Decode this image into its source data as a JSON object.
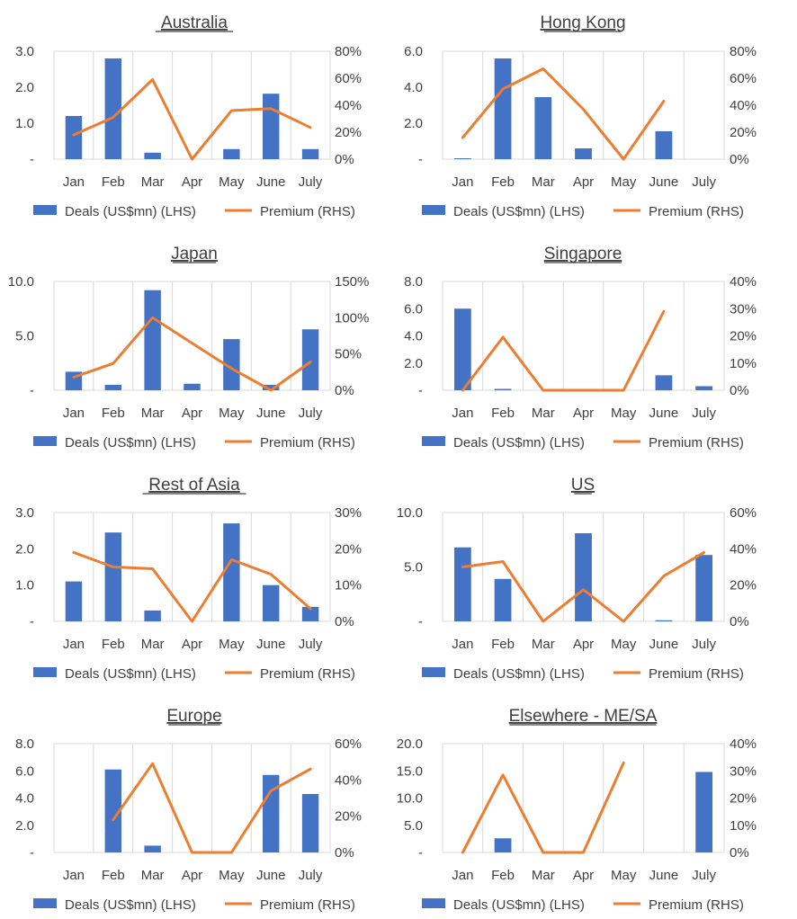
{
  "chart_data": [
    {
      "type": "bar",
      "title": "Australia",
      "categories": [
        "Jan",
        "Feb",
        "Mar",
        "Apr",
        "May",
        "June",
        "July"
      ],
      "series": [
        {
          "name": "Deals (US$mn) (LHS)",
          "kind": "bar",
          "axis": "left",
          "values": [
            1.2,
            2.8,
            0.18,
            0,
            0.28,
            1.82,
            0.28
          ]
        },
        {
          "name": "Premium (RHS)",
          "kind": "line",
          "axis": "right",
          "values": [
            0.18,
            0.31,
            0.59,
            0,
            0.36,
            0.375,
            0.235
          ]
        }
      ],
      "left_ticks": [
        "-",
        "1.0",
        "2.0",
        "3.0"
      ],
      "left_ylim": [
        0,
        3
      ],
      "right_ticks": [
        "0%",
        "20%",
        "40%",
        "60%",
        "80%"
      ],
      "right_ylim": [
        0,
        0.8
      ]
    },
    {
      "type": "bar",
      "title": "Hong Kong",
      "categories": [
        "Jan",
        "Feb",
        "Mar",
        "Apr",
        "May",
        "June",
        "July"
      ],
      "series": [
        {
          "name": "Deals (US$mn) (LHS)",
          "kind": "bar",
          "axis": "left",
          "values": [
            0.05,
            5.6,
            3.45,
            0.6,
            0,
            1.55,
            0
          ]
        },
        {
          "name": "Premium (RHS)",
          "kind": "line",
          "axis": "right",
          "values": [
            0.16,
            0.52,
            0.67,
            0.37,
            0,
            0.43,
            null
          ]
        }
      ],
      "left_ticks": [
        "-",
        "2.0",
        "4.0",
        "6.0"
      ],
      "left_ylim": [
        0,
        6
      ],
      "right_ticks": [
        "0%",
        "20%",
        "40%",
        "60%",
        "80%"
      ],
      "right_ylim": [
        0,
        0.8
      ]
    },
    {
      "type": "bar",
      "title": "Japan",
      "categories": [
        "Jan",
        "Feb",
        "Mar",
        "Apr",
        "May",
        "June",
        "July"
      ],
      "series": [
        {
          "name": "Deals (US$mn) (LHS)",
          "kind": "bar",
          "axis": "left",
          "values": [
            1.7,
            0.5,
            9.2,
            0.6,
            4.7,
            0.5,
            5.6
          ]
        },
        {
          "name": "Premium (RHS)",
          "kind": "line",
          "axis": "right",
          "values": [
            0.18,
            0.37,
            1.0,
            0.65,
            0.3,
            0.0,
            0.39
          ]
        }
      ],
      "left_ticks": [
        "-",
        "5.0",
        "10.0"
      ],
      "left_ylim": [
        0,
        10
      ],
      "right_ticks": [
        "0%",
        "50%",
        "100%",
        "150%"
      ],
      "right_ylim": [
        0,
        1.5
      ]
    },
    {
      "type": "bar",
      "title": "Singapore",
      "categories": [
        "Jan",
        "Feb",
        "Mar",
        "Apr",
        "May",
        "June",
        "July"
      ],
      "series": [
        {
          "name": "Deals (US$mn) (LHS)",
          "kind": "bar",
          "axis": "left",
          "values": [
            6.0,
            0.1,
            0,
            0,
            0,
            1.1,
            0.3
          ]
        },
        {
          "name": "Premium (RHS)",
          "kind": "line",
          "axis": "right",
          "values": [
            0,
            0.195,
            0,
            0,
            0,
            0.29,
            null
          ]
        }
      ],
      "left_ticks": [
        "-",
        "2.0",
        "4.0",
        "6.0",
        "8.0"
      ],
      "left_ylim": [
        0,
        8
      ],
      "right_ticks": [
        "0%",
        "10%",
        "20%",
        "30%",
        "40%"
      ],
      "right_ylim": [
        0,
        0.4
      ]
    },
    {
      "type": "bar",
      "title": "Rest of Asia",
      "categories": [
        "Jan",
        "Feb",
        "Mar",
        "Apr",
        "May",
        "June",
        "July"
      ],
      "series": [
        {
          "name": "Deals (US$mn) (LHS)",
          "kind": "bar",
          "axis": "left",
          "values": [
            1.1,
            2.45,
            0.3,
            0,
            2.7,
            1.0,
            0.4
          ]
        },
        {
          "name": "Premium (RHS)",
          "kind": "line",
          "axis": "right",
          "values": [
            0.19,
            0.15,
            0.145,
            0,
            0.17,
            0.13,
            0.035
          ]
        }
      ],
      "left_ticks": [
        "-",
        "1.0",
        "2.0",
        "3.0"
      ],
      "left_ylim": [
        0,
        3
      ],
      "right_ticks": [
        "0%",
        "10%",
        "20%",
        "30%"
      ],
      "right_ylim": [
        0,
        0.3
      ]
    },
    {
      "type": "bar",
      "title": "US",
      "categories": [
        "Jan",
        "Feb",
        "Mar",
        "Apr",
        "May",
        "June",
        "July"
      ],
      "series": [
        {
          "name": "Deals (US$mn) (LHS)",
          "kind": "bar",
          "axis": "left",
          "values": [
            6.8,
            3.9,
            0,
            8.1,
            0,
            0.1,
            6.1
          ]
        },
        {
          "name": "Premium (RHS)",
          "kind": "line",
          "axis": "right",
          "values": [
            0.3,
            0.33,
            0,
            0.175,
            0,
            0.25,
            0.38
          ]
        }
      ],
      "left_ticks": [
        "-",
        "5.0",
        "10.0"
      ],
      "left_ylim": [
        0,
        10
      ],
      "right_ticks": [
        "0%",
        "20%",
        "40%",
        "60%"
      ],
      "right_ylim": [
        0,
        0.6
      ]
    },
    {
      "type": "bar",
      "title": "Europe",
      "categories": [
        "Jan",
        "Feb",
        "Mar",
        "Apr",
        "May",
        "June",
        "July"
      ],
      "series": [
        {
          "name": "Deals (US$mn) (LHS)",
          "kind": "bar",
          "axis": "left",
          "values": [
            0,
            6.1,
            0.5,
            0,
            0,
            5.7,
            4.3
          ]
        },
        {
          "name": "Premium (RHS)",
          "kind": "line",
          "axis": "right",
          "values": [
            null,
            0.18,
            0.49,
            0,
            0,
            0.34,
            0.46
          ]
        }
      ],
      "left_ticks": [
        "-",
        "2.0",
        "4.0",
        "6.0",
        "8.0"
      ],
      "left_ylim": [
        0,
        8
      ],
      "right_ticks": [
        "0%",
        "20%",
        "40%",
        "60%"
      ],
      "right_ylim": [
        0,
        0.6
      ]
    },
    {
      "type": "bar",
      "title": "Elsewhere - ME/SA",
      "categories": [
        "Jan",
        "Feb",
        "Mar",
        "Apr",
        "May",
        "June",
        "July"
      ],
      "series": [
        {
          "name": "Deals (US$mn) (LHS)",
          "kind": "bar",
          "axis": "left",
          "values": [
            0,
            2.6,
            0,
            0,
            0,
            0,
            14.8
          ]
        },
        {
          "name": "Premium (RHS)",
          "kind": "line",
          "axis": "right",
          "values": [
            0,
            0.285,
            0,
            0,
            0.33,
            null,
            null
          ]
        }
      ],
      "left_ticks": [
        "-",
        "5.0",
        "10.0",
        "15.0",
        "20.0"
      ],
      "left_ylim": [
        0,
        20
      ],
      "right_ticks": [
        "0%",
        "10%",
        "20%",
        "30%",
        "40%"
      ],
      "right_ylim": [
        0,
        0.4
      ]
    }
  ],
  "colors": {
    "bar": "#4472C4",
    "line": "#ED7D31",
    "text": "#404040",
    "title": "#404040",
    "grid": "#D9D9D9"
  }
}
